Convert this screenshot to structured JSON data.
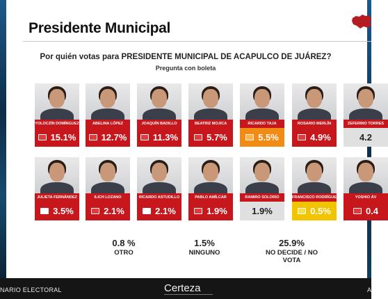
{
  "header": {
    "title": "Presidente Municipal"
  },
  "question": "Por quién votas  para  PRESIDENTE MUNICIPAL DE ACAPULCO DE JUÁREZ?",
  "subquestion": "Pregunta con boleta",
  "colors": {
    "red": "#c8161d",
    "orange": "#f28b13",
    "yellow": "#f2c400",
    "gray": "#e0e0e0"
  },
  "chart_data": {
    "type": "bar",
    "title": "Por quién votas  para  PRESIDENTE MUNICIPAL DE ACAPULCO DE JUÁREZ?",
    "subtitle": "Pregunta con boleta",
    "unit": "%",
    "candidates": [
      {
        "name": "YOLOCZÍN DOMÍNGUEZ",
        "value": "15.1%",
        "v": 15.1,
        "color": "#c8161d",
        "party": "red"
      },
      {
        "name": "ABELINA LÓPEZ",
        "value": "12.7%",
        "v": 12.7,
        "color": "#c8161d",
        "party": "red"
      },
      {
        "name": "JOAQUÍN BADILLO",
        "value": "11.3%",
        "v": 11.3,
        "color": "#c8161d",
        "party": "red"
      },
      {
        "name": "BEATRIZ MOJICA",
        "value": "5.7%",
        "v": 5.7,
        "color": "#c8161d",
        "party": "red"
      },
      {
        "name": "RICARDO TAJA",
        "value": "5.5%",
        "v": 5.5,
        "color": "#f28b13",
        "party": "orange"
      },
      {
        "name": "ROSARIO MERLÍN",
        "value": "4.9%",
        "v": 4.9,
        "color": "#c8161d",
        "party": "red"
      },
      {
        "name": "ZEFERINO TORRES",
        "value": "4.2",
        "v": 4.2,
        "color": "#e0e0e0",
        "party": "none"
      },
      {
        "name": "JULIETA FERNÁNDEZ",
        "value": "3.5%",
        "v": 3.5,
        "color": "#c8161d",
        "party": "white"
      },
      {
        "name": "ILICH LOZANO",
        "value": "2.1%",
        "v": 2.1,
        "color": "#c8161d",
        "party": "red"
      },
      {
        "name": "RICARDO ASTUDILLO",
        "value": "2.1%",
        "v": 2.1,
        "color": "#c8161d",
        "party": "white"
      },
      {
        "name": "PABLO AMÍLCAR",
        "value": "1.9%",
        "v": 1.9,
        "color": "#c8161d",
        "party": "red"
      },
      {
        "name": "RAMIRO SOLORIO",
        "value": "1.9%",
        "v": 1.9,
        "color": "#e0e0e0",
        "party": "none"
      },
      {
        "name": "FRANCISCO RODRÍGUEZ",
        "value": "0.5%",
        "v": 0.5,
        "color": "#f2c400",
        "party": "yellow"
      },
      {
        "name": "YOSHIO ÁV",
        "value": "0.4",
        "v": 0.4,
        "color": "#c8161d",
        "party": "red"
      }
    ],
    "others": [
      {
        "value": "0.8 %",
        "label": "OTRO"
      },
      {
        "value": "1.5%",
        "label": "NINGUNO"
      },
      {
        "value": "25.9%",
        "label": "NO DECIDE / NO VOTA"
      }
    ]
  },
  "footer": {
    "left": "NARIO ELECTORAL",
    "logo": "Certeza",
    "right": "A"
  }
}
